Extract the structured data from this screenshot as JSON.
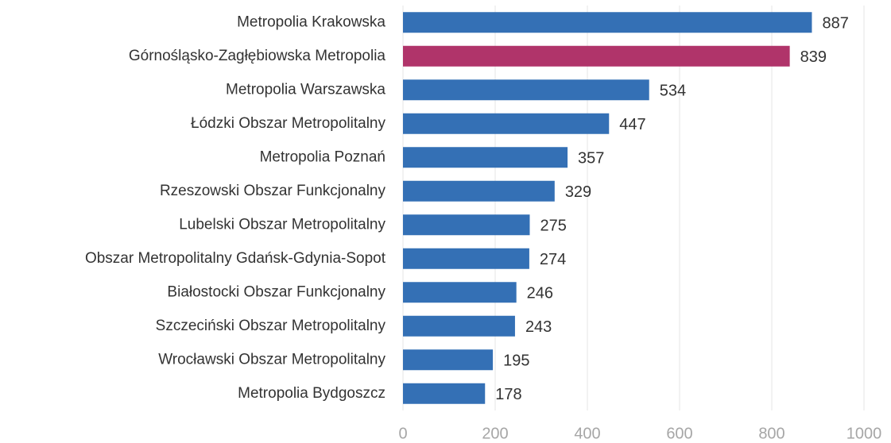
{
  "chart_data": {
    "type": "bar",
    "orientation": "horizontal",
    "categories": [
      "Metropolia Krakowska",
      "Górnośląsko-Zagłębiowska Metropolia",
      "Metropolia Warszawska",
      "Łódzki Obszar Metropolitalny",
      "Metropolia Poznań",
      "Rzeszowski Obszar Funkcjonalny",
      "Lubelski Obszar Metropolitalny",
      "Obszar Metropolitalny Gdańsk-Gdynia-Sopot",
      "Białostocki Obszar Funkcjonalny",
      "Szczeciński Obszar Metropolitalny",
      "Wrocławski Obszar Metropolitalny",
      "Metropolia Bydgoszcz"
    ],
    "values": [
      887,
      839,
      534,
      447,
      357,
      329,
      275,
      274,
      246,
      243,
      195,
      178
    ],
    "colors": [
      "#3470b5",
      "#b0346a",
      "#3470b5",
      "#3470b5",
      "#3470b5",
      "#3470b5",
      "#3470b5",
      "#3470b5",
      "#3470b5",
      "#3470b5",
      "#3470b5",
      "#3470b5"
    ],
    "xlim": [
      0,
      1000
    ],
    "xticks": [
      0,
      200,
      400,
      600,
      800,
      1000
    ],
    "grid": true
  }
}
